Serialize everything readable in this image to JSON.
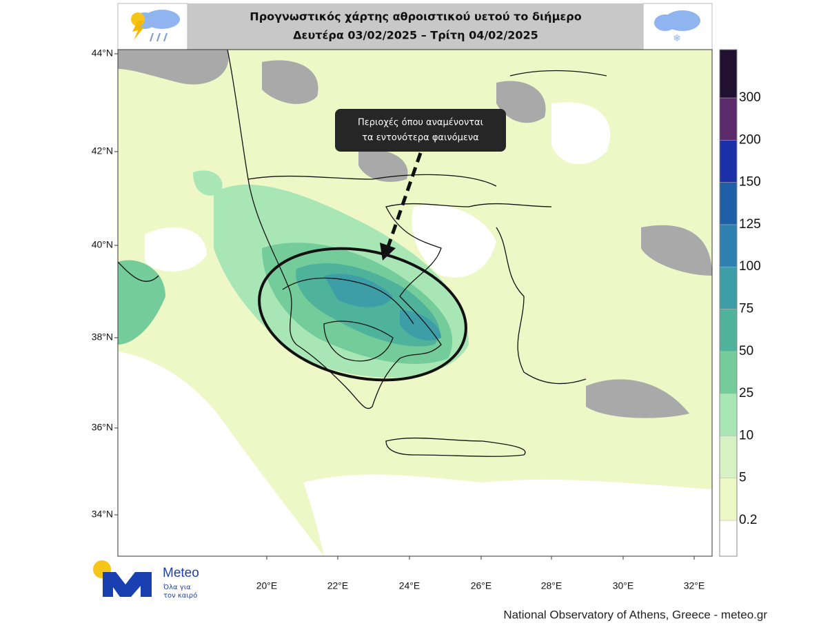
{
  "header": {
    "title_line1": "Προγνωστικός χάρτης αθροιστικού υετού το διήμερο",
    "title_line2": "Δευτέρα 03/02/2025 – Τρίτη 04/02/2025"
  },
  "annotation": {
    "line1": "Περιοχές όπου αναμένονται",
    "line2": "τα εντονότερα φαινόμενα"
  },
  "map": {
    "lat_labels": [
      "44°N",
      "42°N",
      "40°N",
      "38°N",
      "36°N",
      "34°N"
    ],
    "lon_labels": [
      "20°E",
      "22°E",
      "24°E",
      "26°E",
      "28°E",
      "30°E",
      "32°E"
    ]
  },
  "colorbar": {
    "levels": [
      0.2,
      5,
      10,
      25,
      50,
      75,
      100,
      125,
      150,
      200,
      300
    ],
    "colors": [
      "#ffffff",
      "#eef7c6",
      "#d6f1c4",
      "#a9e6b5",
      "#74cc9b",
      "#4eb39a",
      "#3d9ea8",
      "#2f7fb0",
      "#1f5fa8",
      "#1a2fa8",
      "#5a2a6a",
      "#221030"
    ]
  },
  "logo": {
    "name": "Meteo",
    "tagline1": "Όλα για",
    "tagline2": "τον καιρό"
  },
  "footer": "National Observatory of Athens, Greece - meteo.gr"
}
